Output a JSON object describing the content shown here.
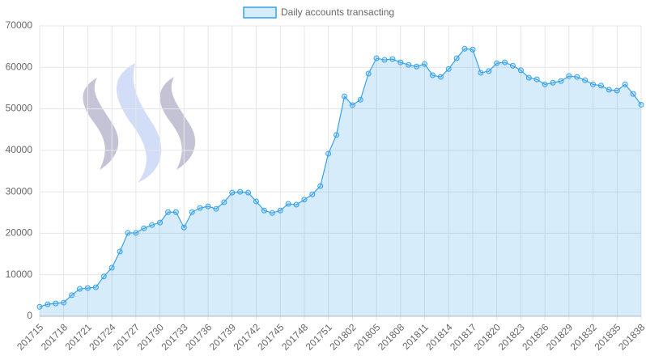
{
  "chart_data": {
    "type": "line",
    "categories": [
      "201715",
      null,
      null,
      "201718",
      null,
      null,
      "201721",
      null,
      null,
      "201724",
      null,
      null,
      "201727",
      null,
      null,
      "201730",
      null,
      null,
      "201733",
      null,
      null,
      "201736",
      null,
      null,
      "201739",
      null,
      null,
      "201742",
      null,
      null,
      "201745",
      null,
      null,
      "201748",
      null,
      null,
      "201751",
      null,
      null,
      "201802",
      null,
      null,
      "201805",
      null,
      null,
      "201808",
      null,
      null,
      "201811",
      null,
      null,
      "201814",
      null,
      null,
      "201817",
      null,
      null,
      "201820",
      null,
      null,
      "201823",
      null,
      null,
      "201826",
      null,
      null,
      "201829",
      null,
      null,
      "201832",
      null,
      null,
      "201835",
      null,
      null,
      "201838"
    ],
    "series": [
      {
        "name": "Daily accounts transacting",
        "color": "#36a2eb",
        "fill": "rgba(54,162,235,0.2)",
        "values": [
          2300,
          2900,
          3100,
          3300,
          5100,
          6600,
          6800,
          7000,
          9600,
          11700,
          15600,
          20100,
          20100,
          21200,
          22000,
          22600,
          25100,
          25100,
          21400,
          25100,
          26100,
          26500,
          25900,
          27500,
          29800,
          30000,
          29800,
          27700,
          25500,
          24900,
          25500,
          27100,
          26900,
          28100,
          29400,
          31400,
          39200,
          43700,
          53000,
          50900,
          52200,
          58500,
          62200,
          61800,
          62000,
          61200,
          60600,
          60200,
          60800,
          58100,
          57700,
          59600,
          62200,
          64500,
          64300,
          58700,
          59100,
          61000,
          61200,
          60400,
          59300,
          57500,
          57100,
          55900,
          56300,
          56700,
          57900,
          57700,
          56900,
          55900,
          55600,
          54600,
          54400,
          55900,
          53600,
          51000
        ]
      }
    ],
    "ylim": [
      0,
      70000
    ],
    "yticks": [
      0,
      10000,
      20000,
      30000,
      40000,
      50000,
      60000,
      70000
    ],
    "grid": true,
    "legend": "top"
  }
}
